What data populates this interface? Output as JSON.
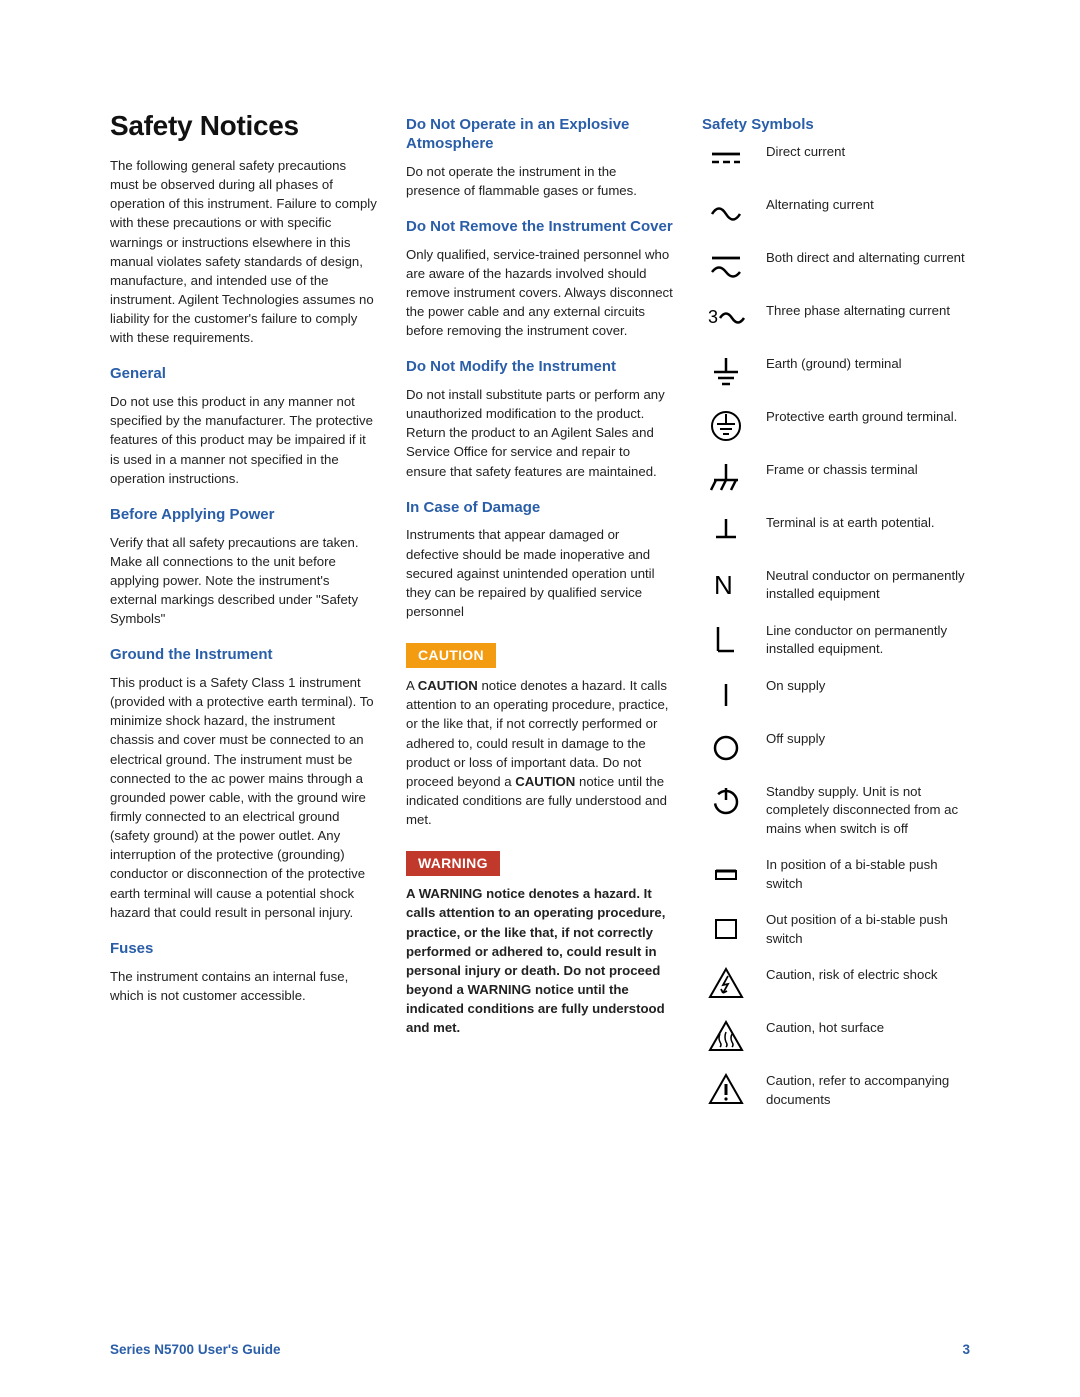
{
  "page": {
    "title": "Safety Notices",
    "footer_title": "Series N5700 User's Guide",
    "page_number": "3",
    "colors": {
      "heading": "#2a5ea8",
      "caution_bg": "#f39c12",
      "warning_bg": "#c0392b",
      "text": "#222"
    },
    "fonts": {
      "title_size_pt": 21,
      "heading_size_pt": 11,
      "body_size_pt": 10,
      "family": "Arial"
    }
  },
  "col1": {
    "intro": "The following general safety precautions must be observed during all phases of operation of this instrument. Failure to comply with these precautions or with specific warnings or instructions elsewhere in this manual violates safety standards of design, manufacture, and intended use of the instrument. Agilent Technologies assumes no liability for the customer's failure to comply with these requirements.",
    "general_h": "General",
    "general": "Do not use this product in any manner not specified by the manufacturer. The protective features of this product may be impaired if it is used in a manner not specified in the operation instructions.",
    "before_h": "Before Applying Power",
    "before": "Verify that all safety precautions are taken. Make all connections to the unit before applying power. Note the instrument's external markings described under \"Safety Symbols\"",
    "ground_h": "Ground the Instrument",
    "ground": "This product is a Safety Class 1 instrument (provided with a protective earth terminal). To minimize shock hazard, the instrument chassis and cover must be connected to an electrical ground.  The instrument must be connected to the ac power mains through a grounded power cable, with the ground wire firmly connected to an electrical ground (safety ground) at the power outlet. Any interruption of the protective (grounding) conductor or disconnection of the protective earth terminal will cause a potential shock hazard that could result in personal injury.",
    "fuses_h": "Fuses",
    "fuses": "The instrument contains an internal fuse, which is not customer accessible."
  },
  "col2": {
    "explo_h": "Do Not Operate in an Explosive Atmosphere",
    "explo": "Do not operate the instrument in the presence of flammable gases or fumes.",
    "cover_h": "Do Not Remove the Instrument Cover",
    "cover": "Only qualified, service-trained personnel who are aware of the hazards involved should remove instrument covers. Always disconnect the power cable and any external circuits before removing the instrument cover.",
    "modify_h": "Do Not Modify the Instrument",
    "modify": "Do not install substitute parts or perform any unauthorized modification to the product. Return the product to an Agilent Sales and Service Office for service and repair to ensure that safety features are maintained.",
    "damage_h": "In Case of Damage",
    "damage": "Instruments that appear damaged or defective should be made inoperative and secured against unintended operation until they can be repaired by qualified service personnel",
    "caution_label": "CAUTION",
    "caution_pre": "A ",
    "caution_bold1": "CAUTION",
    "caution_mid": " notice denotes a hazard. It calls attention to an operating procedure, practice, or the like that, if not correctly performed or adhered to, could result in damage to the product or loss of important data. Do not proceed beyond a ",
    "caution_bold2": "CAUTION",
    "caution_post": " notice until the indicated conditions are fully understood and met.",
    "warning_label": "WARNING",
    "warning_text": "A WARNING notice denotes a hazard. It calls attention to an operating procedure, practice, or the like that, if not correctly performed or adhered to, could result in personal injury or death. Do not proceed beyond a WARNING notice until the indicated conditions are fully understood and met."
  },
  "col3": {
    "symbols_h": "Safety Symbols",
    "symbols": [
      {
        "name": "dc",
        "label": "Direct current"
      },
      {
        "name": "ac",
        "label": "Alternating current"
      },
      {
        "name": "acdc",
        "label": "Both direct and alternating current"
      },
      {
        "name": "threephase",
        "label": "Three phase alternating current"
      },
      {
        "name": "earth",
        "label": "Earth (ground) terminal"
      },
      {
        "name": "protearth",
        "label": "Protective earth ground terminal."
      },
      {
        "name": "chassis",
        "label": "Frame or chassis terminal"
      },
      {
        "name": "earthpot",
        "label": "Terminal is at earth potential."
      },
      {
        "name": "neutral",
        "label": "Neutral conductor on permanently installed equipment"
      },
      {
        "name": "line",
        "label": "Line conductor on permanently installed equipment."
      },
      {
        "name": "onsupply",
        "label": "On supply"
      },
      {
        "name": "offsupply",
        "label": "Off supply"
      },
      {
        "name": "standby",
        "label": "Standby supply. Unit is not completely disconnected from ac mains when switch is off"
      },
      {
        "name": "inpos",
        "label": "In position of a bi-stable push switch"
      },
      {
        "name": "outpos",
        "label": "Out position of a bi-stable push switch"
      },
      {
        "name": "shock",
        "label": "Caution, risk of electric shock"
      },
      {
        "name": "hot",
        "label": "Caution, hot surface"
      },
      {
        "name": "refer",
        "label": "Caution, refer to accompanying documents"
      }
    ]
  }
}
